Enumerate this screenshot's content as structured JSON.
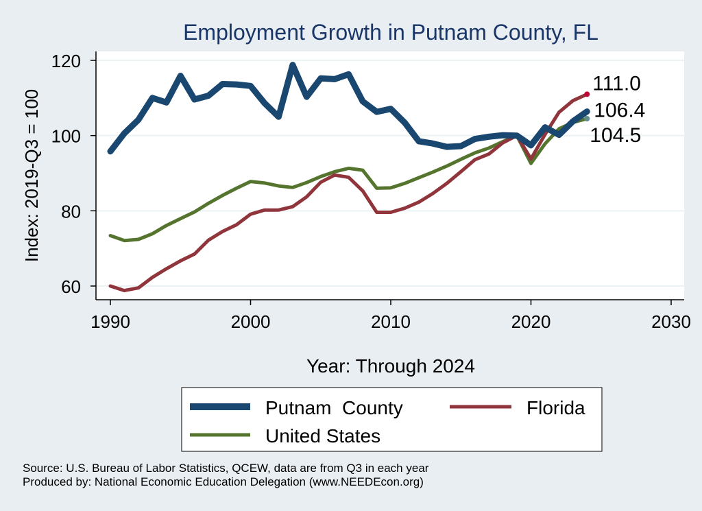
{
  "chart_data": {
    "type": "line",
    "title": "Employment Growth in Putnam County, FL",
    "xlabel": "Year: Through 2024",
    "ylabel": "Index: 2019-Q3 = 100",
    "xlim": [
      1990,
      2030
    ],
    "ylim": [
      58,
      122
    ],
    "x_ticks": [
      "1990",
      "2000",
      "2010",
      "2020",
      "2030"
    ],
    "y_ticks": [
      "60",
      "80",
      "100",
      "120"
    ],
    "grid": true,
    "legend_position": "bottom",
    "x": [
      1990,
      1991,
      1992,
      1993,
      1994,
      1995,
      1996,
      1997,
      1998,
      1999,
      2000,
      2001,
      2002,
      2003,
      2004,
      2005,
      2006,
      2007,
      2008,
      2009,
      2010,
      2011,
      2012,
      2013,
      2014,
      2015,
      2016,
      2017,
      2018,
      2019,
      2020,
      2021,
      2022,
      2023,
      2024
    ],
    "series": [
      {
        "name": "Putnam  County",
        "color": "#1a476f",
        "values": [
          95.8,
          100.6,
          104.2,
          110.0,
          108.8,
          115.9,
          109.6,
          110.6,
          113.7,
          113.6,
          113.2,
          108.6,
          105.0,
          118.8,
          110.3,
          115.2,
          115.0,
          116.3,
          109.1,
          106.3,
          107.1,
          103.4,
          98.5,
          97.9,
          97.0,
          97.2,
          99.1,
          99.7,
          100.1,
          100.0,
          97.4,
          102.2,
          100.2,
          103.8,
          106.4
        ]
      },
      {
        "name": "Florida",
        "color": "#90353b",
        "values": [
          60.0,
          58.8,
          59.5,
          62.3,
          64.6,
          66.7,
          68.5,
          72.2,
          74.5,
          76.3,
          79.1,
          80.2,
          80.2,
          81.1,
          83.7,
          87.6,
          89.5,
          88.9,
          85.3,
          79.6,
          79.6,
          80.7,
          82.3,
          84.6,
          87.3,
          90.4,
          93.6,
          95.1,
          98.1,
          100.0,
          93.8,
          100.3,
          106.2,
          109.3,
          111.0
        ]
      },
      {
        "name": "United States",
        "color": "#55752f",
        "values": [
          73.4,
          72.1,
          72.4,
          73.9,
          76.1,
          77.9,
          79.7,
          82.0,
          84.1,
          86.0,
          87.8,
          87.4,
          86.6,
          86.2,
          87.5,
          89.1,
          90.4,
          91.3,
          90.8,
          86.0,
          86.1,
          87.3,
          88.8,
          90.3,
          91.9,
          93.7,
          95.4,
          96.7,
          98.4,
          100.0,
          92.6,
          97.8,
          101.8,
          103.5,
          104.5
        ]
      }
    ],
    "end_labels": [
      {
        "series": "Florida",
        "text": "111.0",
        "color": "#c10534"
      },
      {
        "series": "Putnam  County",
        "text": "106.4",
        "color": "#1a476f"
      },
      {
        "series": "United States",
        "text": "104.5",
        "color": "#5e8a8a"
      }
    ]
  },
  "source_line1": "Source: U.S. Bureau of Labor Statistics, QCEW, data are from Q3 in each year",
  "source_line2": "Produced by: National Economic Education Delegation (www.NEEDEcon.org)"
}
